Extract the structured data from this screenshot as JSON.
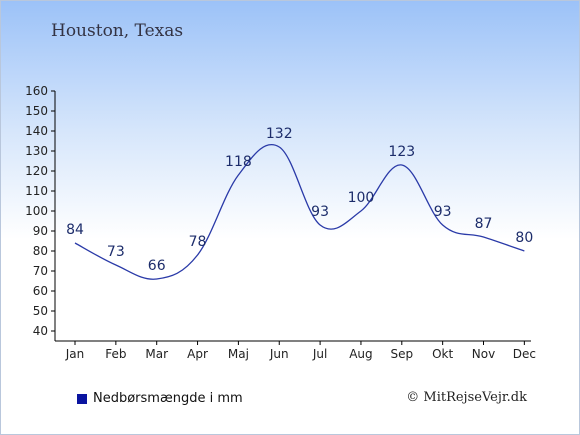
{
  "header": {
    "title": "Houston, Texas"
  },
  "legend": {
    "label": "Nedbørsmængde i mm",
    "swatch_color": "#0a14a0"
  },
  "credit": {
    "text": "© MitRejseVejr.dk"
  },
  "colors": {
    "line": "#2a3aa8",
    "text": "#1d2d6b",
    "axis": "#000000"
  },
  "chart_data": {
    "type": "line",
    "title": "Houston, Texas",
    "categories": [
      "Jan",
      "Feb",
      "Mar",
      "Apr",
      "Maj",
      "Jun",
      "Jul",
      "Aug",
      "Sep",
      "Okt",
      "Nov",
      "Dec"
    ],
    "series": [
      {
        "name": "Nedbørsmængde i mm",
        "values": [
          84,
          73,
          66,
          78,
          118,
          132,
          93,
          100,
          123,
          93,
          87,
          80
        ]
      }
    ],
    "ylim": [
      40,
      160
    ],
    "yticks": [
      40,
      50,
      60,
      70,
      80,
      90,
      100,
      110,
      120,
      130,
      140,
      150,
      160
    ],
    "grid": false,
    "legend_position": "bottom-left"
  }
}
